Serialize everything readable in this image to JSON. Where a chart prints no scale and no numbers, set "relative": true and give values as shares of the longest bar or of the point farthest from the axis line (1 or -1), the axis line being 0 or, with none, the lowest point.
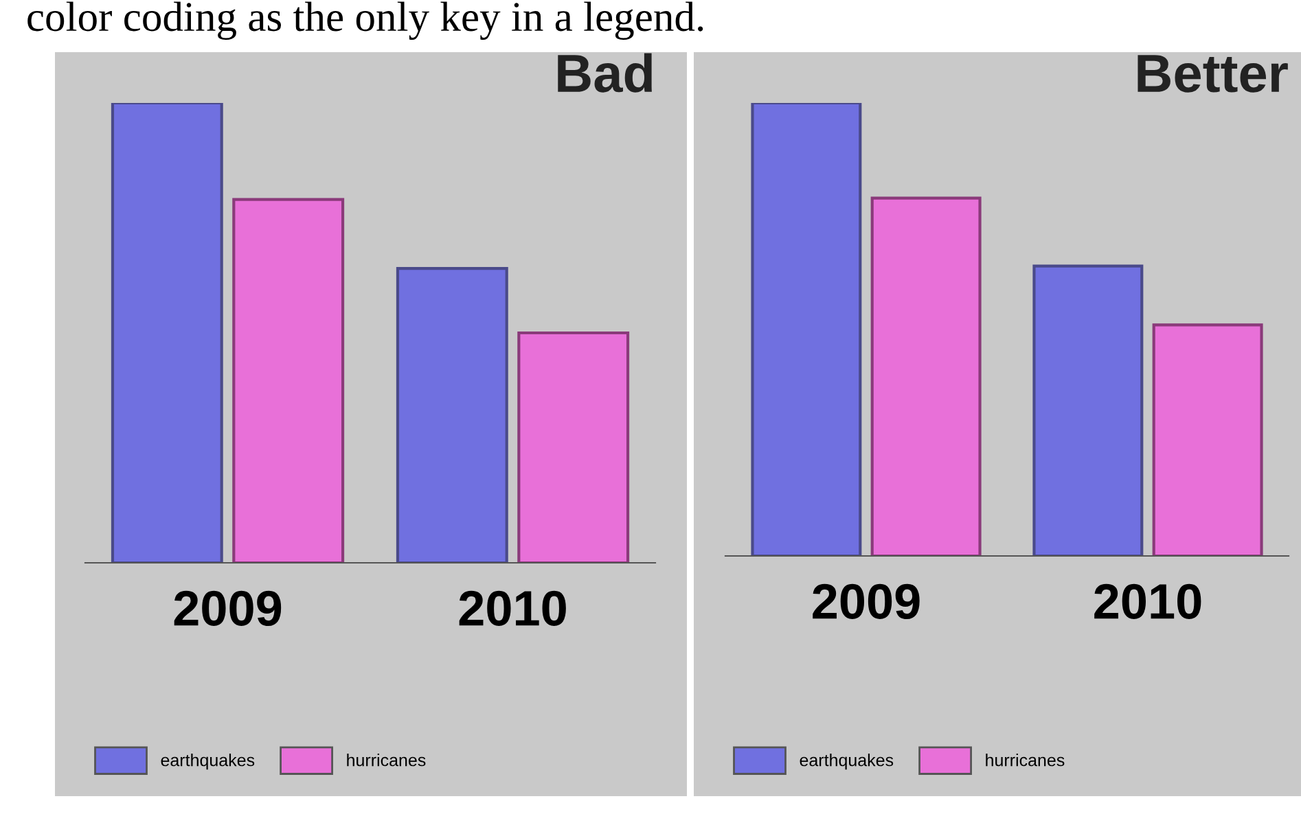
{
  "chart_data": [
    {
      "type": "bar",
      "title": "Bad",
      "relative": true,
      "categories": [
        "2009",
        "2010"
      ],
      "legend": "bottom left",
      "annotations": [
        "color coding as the only key in a legend."
      ],
      "series": [
        {
          "name": "earthquakes",
          "color": "#7070e0",
          "values": [
            1,
            0.64
          ]
        },
        {
          "name": "hurricanes",
          "color": "#e870d8",
          "values": [
            0.79,
            0.5
          ]
        }
      ]
    },
    {
      "type": "bar",
      "title": "Better",
      "relative": true,
      "categories": [
        "2009",
        "2010"
      ],
      "legend": "bottom left",
      "series": [
        {
          "name": "earthquakes",
          "color": "#7070e0",
          "values": [
            1,
            0.64
          ]
        },
        {
          "name": "hurricanes",
          "color": "#e870d8",
          "values": [
            0.79,
            0.51
          ]
        }
      ]
    }
  ]
}
